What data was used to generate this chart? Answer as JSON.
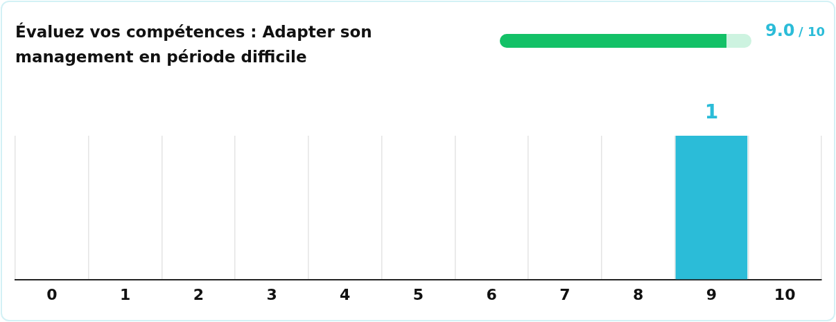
{
  "chart_data": {
    "type": "bar",
    "title": "Évaluez vos compétences : Adapter son management en période difficile",
    "annotations": [
      "9.0",
      "/ 10"
    ],
    "categories": [
      "0",
      "1",
      "2",
      "3",
      "4",
      "5",
      "6",
      "7",
      "8",
      "9",
      "10"
    ],
    "values": [
      0,
      0,
      0,
      0,
      0,
      0,
      0,
      0,
      0,
      1,
      0
    ],
    "color": "#2bbcd8",
    "value_labels": [
      null,
      null,
      null,
      null,
      null,
      null,
      null,
      null,
      null,
      "1",
      null
    ],
    "ylim": [
      0,
      1
    ],
    "tick_labels": "x",
    "grid": "x",
    "legend": false
  }
}
